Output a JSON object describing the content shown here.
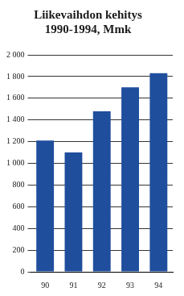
{
  "chart_data": {
    "type": "bar",
    "title": [
      "Liikevaihdon kehitys",
      "1990-1994, Mmk"
    ],
    "categories": [
      "90",
      "91",
      "92",
      "93",
      "94"
    ],
    "values": [
      1210,
      1100,
      1480,
      1700,
      1830
    ],
    "color": "#1f4e9c",
    "ylim": [
      0,
      2000
    ],
    "yticks": [
      0,
      200,
      400,
      600,
      800,
      {
        "value": 1000,
        "label": "1 000"
      },
      {
        "value": 1200,
        "label": "1 200"
      },
      {
        "value": 1400,
        "label": "1 400"
      },
      {
        "value": 1600,
        "label": "1 600"
      },
      {
        "value": 1800,
        "label": "1 800"
      },
      {
        "value": 2000,
        "label": "2 000"
      }
    ],
    "grid": true
  }
}
